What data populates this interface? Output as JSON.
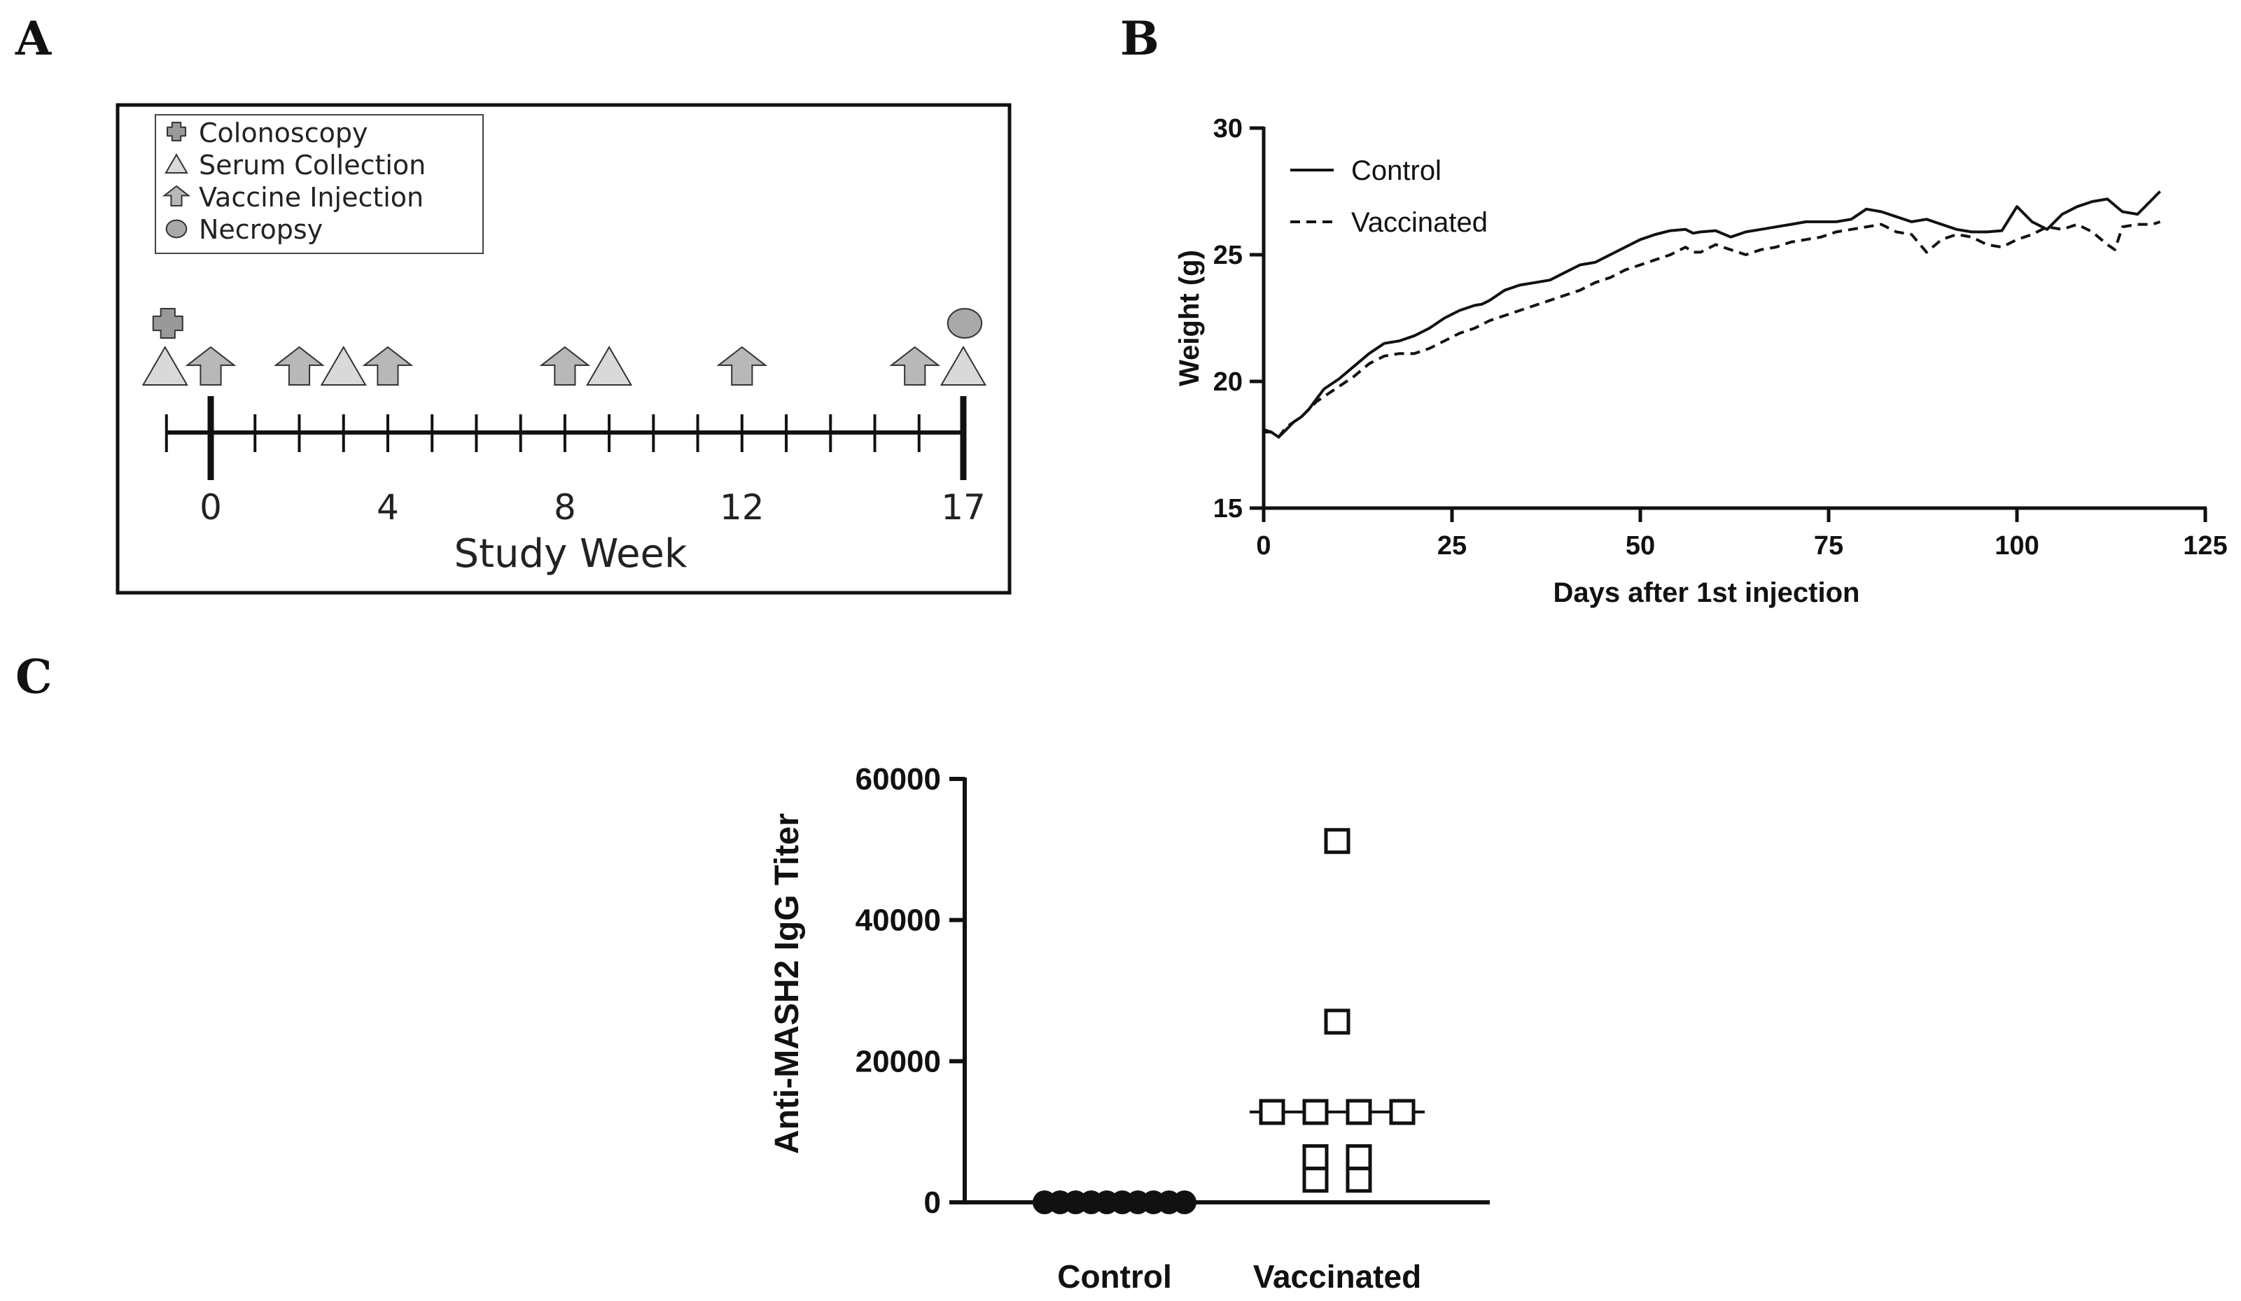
{
  "colors": {
    "ink": "#111111",
    "marker_fill": "#b8b8b8",
    "marker_stroke": "#333333"
  },
  "panels": {
    "a_letter": "A",
    "b_letter": "B",
    "c_letter": "C"
  },
  "chart_data": [
    {
      "panel": "A",
      "type": "timeline",
      "legend": [
        {
          "icon": "cross-icon",
          "label": "Colonoscopy"
        },
        {
          "icon": "triangle-icon",
          "label": "Serum Collection"
        },
        {
          "icon": "arrow-up-icon",
          "label": "Vaccine Injection"
        },
        {
          "icon": "circle-icon",
          "label": "Necropsy"
        }
      ],
      "xlabel": "Study Week",
      "tick_labels": [
        {
          "week": 0,
          "label": "0"
        },
        {
          "week": 4,
          "label": "4"
        },
        {
          "week": 8,
          "label": "8"
        },
        {
          "week": 12,
          "label": "12"
        },
        {
          "week": 17,
          "label": "17"
        }
      ],
      "week_range": [
        -1,
        17
      ],
      "events": {
        "colonoscopy": [
          -1
        ],
        "serum_collection": [
          -1,
          3,
          9,
          17
        ],
        "vaccine_injection": [
          0,
          2,
          4,
          8,
          12,
          16
        ],
        "necropsy": [
          17
        ]
      }
    },
    {
      "panel": "B",
      "type": "line",
      "xlabel": "Days after 1st injection",
      "ylabel": "Weight (g)",
      "xlim": [
        0,
        125
      ],
      "ylim": [
        15,
        30
      ],
      "xticks": [
        0,
        25,
        50,
        75,
        100,
        125
      ],
      "yticks": [
        15,
        20,
        25,
        30
      ],
      "series": [
        {
          "name": "Control",
          "style": "solid",
          "x": [
            0,
            1,
            2,
            3,
            4,
            5,
            6,
            7,
            8,
            10,
            12,
            14,
            16,
            18,
            20,
            22,
            24,
            26,
            28,
            29,
            30,
            31,
            32,
            34,
            36,
            38,
            40,
            42,
            44,
            46,
            48,
            50,
            52,
            54,
            56,
            57,
            58,
            60,
            62,
            64,
            66,
            68,
            70,
            72,
            74,
            76,
            78,
            80,
            82,
            84,
            86,
            88,
            90,
            92,
            94,
            96,
            98,
            100,
            102,
            104,
            106,
            108,
            110,
            112,
            114,
            116,
            118,
            119
          ],
          "y": [
            18.1,
            18.0,
            17.8,
            18.1,
            18.4,
            18.6,
            18.9,
            19.3,
            19.7,
            20.1,
            20.6,
            21.1,
            21.5,
            21.6,
            21.8,
            22.1,
            22.5,
            22.8,
            23.0,
            23.05,
            23.2,
            23.4,
            23.6,
            23.8,
            23.9,
            24.0,
            24.3,
            24.6,
            24.7,
            25.0,
            25.3,
            25.6,
            25.8,
            25.95,
            26.0,
            25.85,
            25.9,
            25.95,
            25.7,
            25.9,
            26.0,
            26.1,
            26.2,
            26.3,
            26.3,
            26.3,
            26.4,
            26.8,
            26.7,
            26.5,
            26.3,
            26.4,
            26.2,
            26.0,
            25.9,
            25.9,
            25.95,
            26.9,
            26.3,
            26.0,
            26.6,
            26.9,
            27.1,
            27.2,
            26.7,
            26.6,
            27.2,
            27.5
          ]
        },
        {
          "name": "Vaccinated",
          "style": "dashed",
          "x": [
            0,
            1,
            2,
            3,
            4,
            5,
            6,
            7,
            8,
            10,
            12,
            14,
            16,
            18,
            20,
            22,
            24,
            26,
            28,
            30,
            32,
            34,
            36,
            38,
            40,
            42,
            44,
            46,
            48,
            50,
            52,
            54,
            56,
            57,
            58,
            60,
            62,
            64,
            66,
            68,
            70,
            72,
            74,
            76,
            78,
            80,
            82,
            84,
            86,
            88,
            90,
            92,
            94,
            96,
            98,
            100,
            102,
            104,
            106,
            108,
            110,
            112,
            113,
            114,
            116,
            118,
            119
          ],
          "y": [
            18.0,
            18.0,
            17.8,
            18.2,
            18.4,
            18.6,
            18.9,
            19.2,
            19.4,
            19.8,
            20.2,
            20.7,
            21.0,
            21.1,
            21.1,
            21.3,
            21.6,
            21.9,
            22.1,
            22.4,
            22.6,
            22.8,
            23.0,
            23.2,
            23.4,
            23.6,
            23.9,
            24.1,
            24.4,
            24.6,
            24.8,
            25.0,
            25.3,
            25.1,
            25.1,
            25.4,
            25.2,
            25.0,
            25.2,
            25.3,
            25.5,
            25.6,
            25.7,
            25.9,
            26.0,
            26.1,
            26.2,
            25.9,
            25.8,
            25.1,
            25.6,
            25.8,
            25.7,
            25.4,
            25.3,
            25.6,
            25.8,
            26.1,
            26.0,
            26.2,
            25.9,
            25.4,
            25.2,
            26.1,
            26.2,
            26.2,
            26.3
          ]
        }
      ]
    },
    {
      "panel": "C",
      "type": "scatter",
      "ylabel": "Anti-MASH2 IgG Titer",
      "categories": [
        "Control",
        "Vaccinated"
      ],
      "ylim": [
        0,
        60000
      ],
      "yticks": [
        0,
        20000,
        40000,
        60000
      ],
      "series": [
        {
          "name": "Control",
          "marker": "circle",
          "values": [
            0,
            0,
            0,
            0,
            0,
            0,
            0,
            0,
            0,
            0
          ]
        },
        {
          "name": "Vaccinated",
          "marker": "square",
          "values": [
            51200,
            25600,
            12800,
            12800,
            12800,
            12800,
            6400,
            6400,
            3200,
            3200
          ]
        }
      ],
      "medians": {
        "Control": 0,
        "Vaccinated": 12800
      }
    }
  ]
}
